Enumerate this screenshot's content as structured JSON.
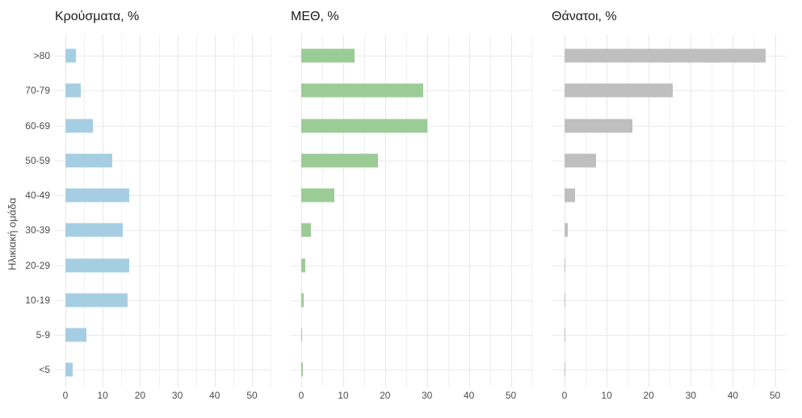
{
  "figure": {
    "y_axis_title": "Ηλικιακή ομάδα",
    "background": "#ffffff",
    "grid_major_color": "#e7e7e7",
    "grid_minor_color": "#f1f1f1",
    "axis_text_color": "#4d4d4d",
    "title_text_color": "#1a1a1a"
  },
  "chart_data": {
    "type": "bar",
    "orientation": "horizontal",
    "layout": "three side-by-side panels sharing the same y-axis categories; only the left panel shows category labels",
    "categories": [
      ">80",
      "70-79",
      "60-69",
      "50-59",
      "40-49",
      "30-39",
      "20-29",
      "10-19",
      "5-9",
      "<5"
    ],
    "ylabel": "Ηλικιακή ομάδα",
    "xlabel": "",
    "xlim": [
      0,
      52
    ],
    "x_ticks": [
      0,
      10,
      20,
      30,
      40,
      50
    ],
    "grid": "vertical gridlines every 5 (major every 10), horizontal gridline at each category",
    "legend": "none",
    "series": [
      {
        "name": "Κρούσματα, %",
        "color": "#a6cee3",
        "values": [
          2.8,
          4.1,
          7.3,
          12.5,
          17.1,
          15.4,
          17.0,
          16.7,
          5.6,
          2.0
        ]
      },
      {
        "name": "ΜΕΘ, %",
        "color": "#9ccc96",
        "values": [
          12.7,
          29.1,
          30.0,
          18.3,
          7.9,
          2.4,
          1.0,
          0.5,
          0.25,
          0.4
        ]
      },
      {
        "name": "Θάνατοι, %",
        "color": "#bfbfbf",
        "values": [
          47.7,
          25.8,
          16.2,
          7.4,
          2.4,
          0.8,
          0.15,
          0.25,
          0.05,
          0.1
        ]
      }
    ]
  }
}
